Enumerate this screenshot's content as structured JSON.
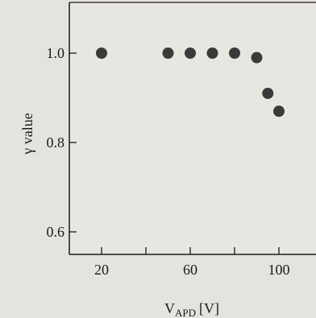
{
  "chart_data": {
    "type": "scatter",
    "title": "",
    "xlabel_main": "V",
    "xlabel_sub": "APD",
    "xlabel_unit": "[V]",
    "ylabel": "γ value",
    "xlim": [
      0,
      120
    ],
    "ylim": [
      0.5,
      1.1
    ],
    "x_ticks": [
      {
        "value": 20,
        "label": "20"
      },
      {
        "value": 40,
        "label": ""
      },
      {
        "value": 60,
        "label": "60"
      },
      {
        "value": 80,
        "label": ""
      },
      {
        "value": 100,
        "label": "100"
      }
    ],
    "y_ticks": [
      {
        "value": 0.6,
        "label": "0.6"
      },
      {
        "value": 0.8,
        "label": "0.8"
      },
      {
        "value": 1.0,
        "label": "1.0"
      }
    ],
    "points": [
      {
        "x": 20,
        "y": 1.0
      },
      {
        "x": 50,
        "y": 1.0
      },
      {
        "x": 60,
        "y": 1.0
      },
      {
        "x": 70,
        "y": 1.0
      },
      {
        "x": 80,
        "y": 1.0
      },
      {
        "x": 90,
        "y": 0.99
      },
      {
        "x": 95,
        "y": 0.91
      },
      {
        "x": 100,
        "y": 0.87
      }
    ],
    "grid": false,
    "legend": "none"
  },
  "colors": {
    "background": "#e5e3dd",
    "marker": "#3a3a3a",
    "axis": "#1a1a1a"
  }
}
